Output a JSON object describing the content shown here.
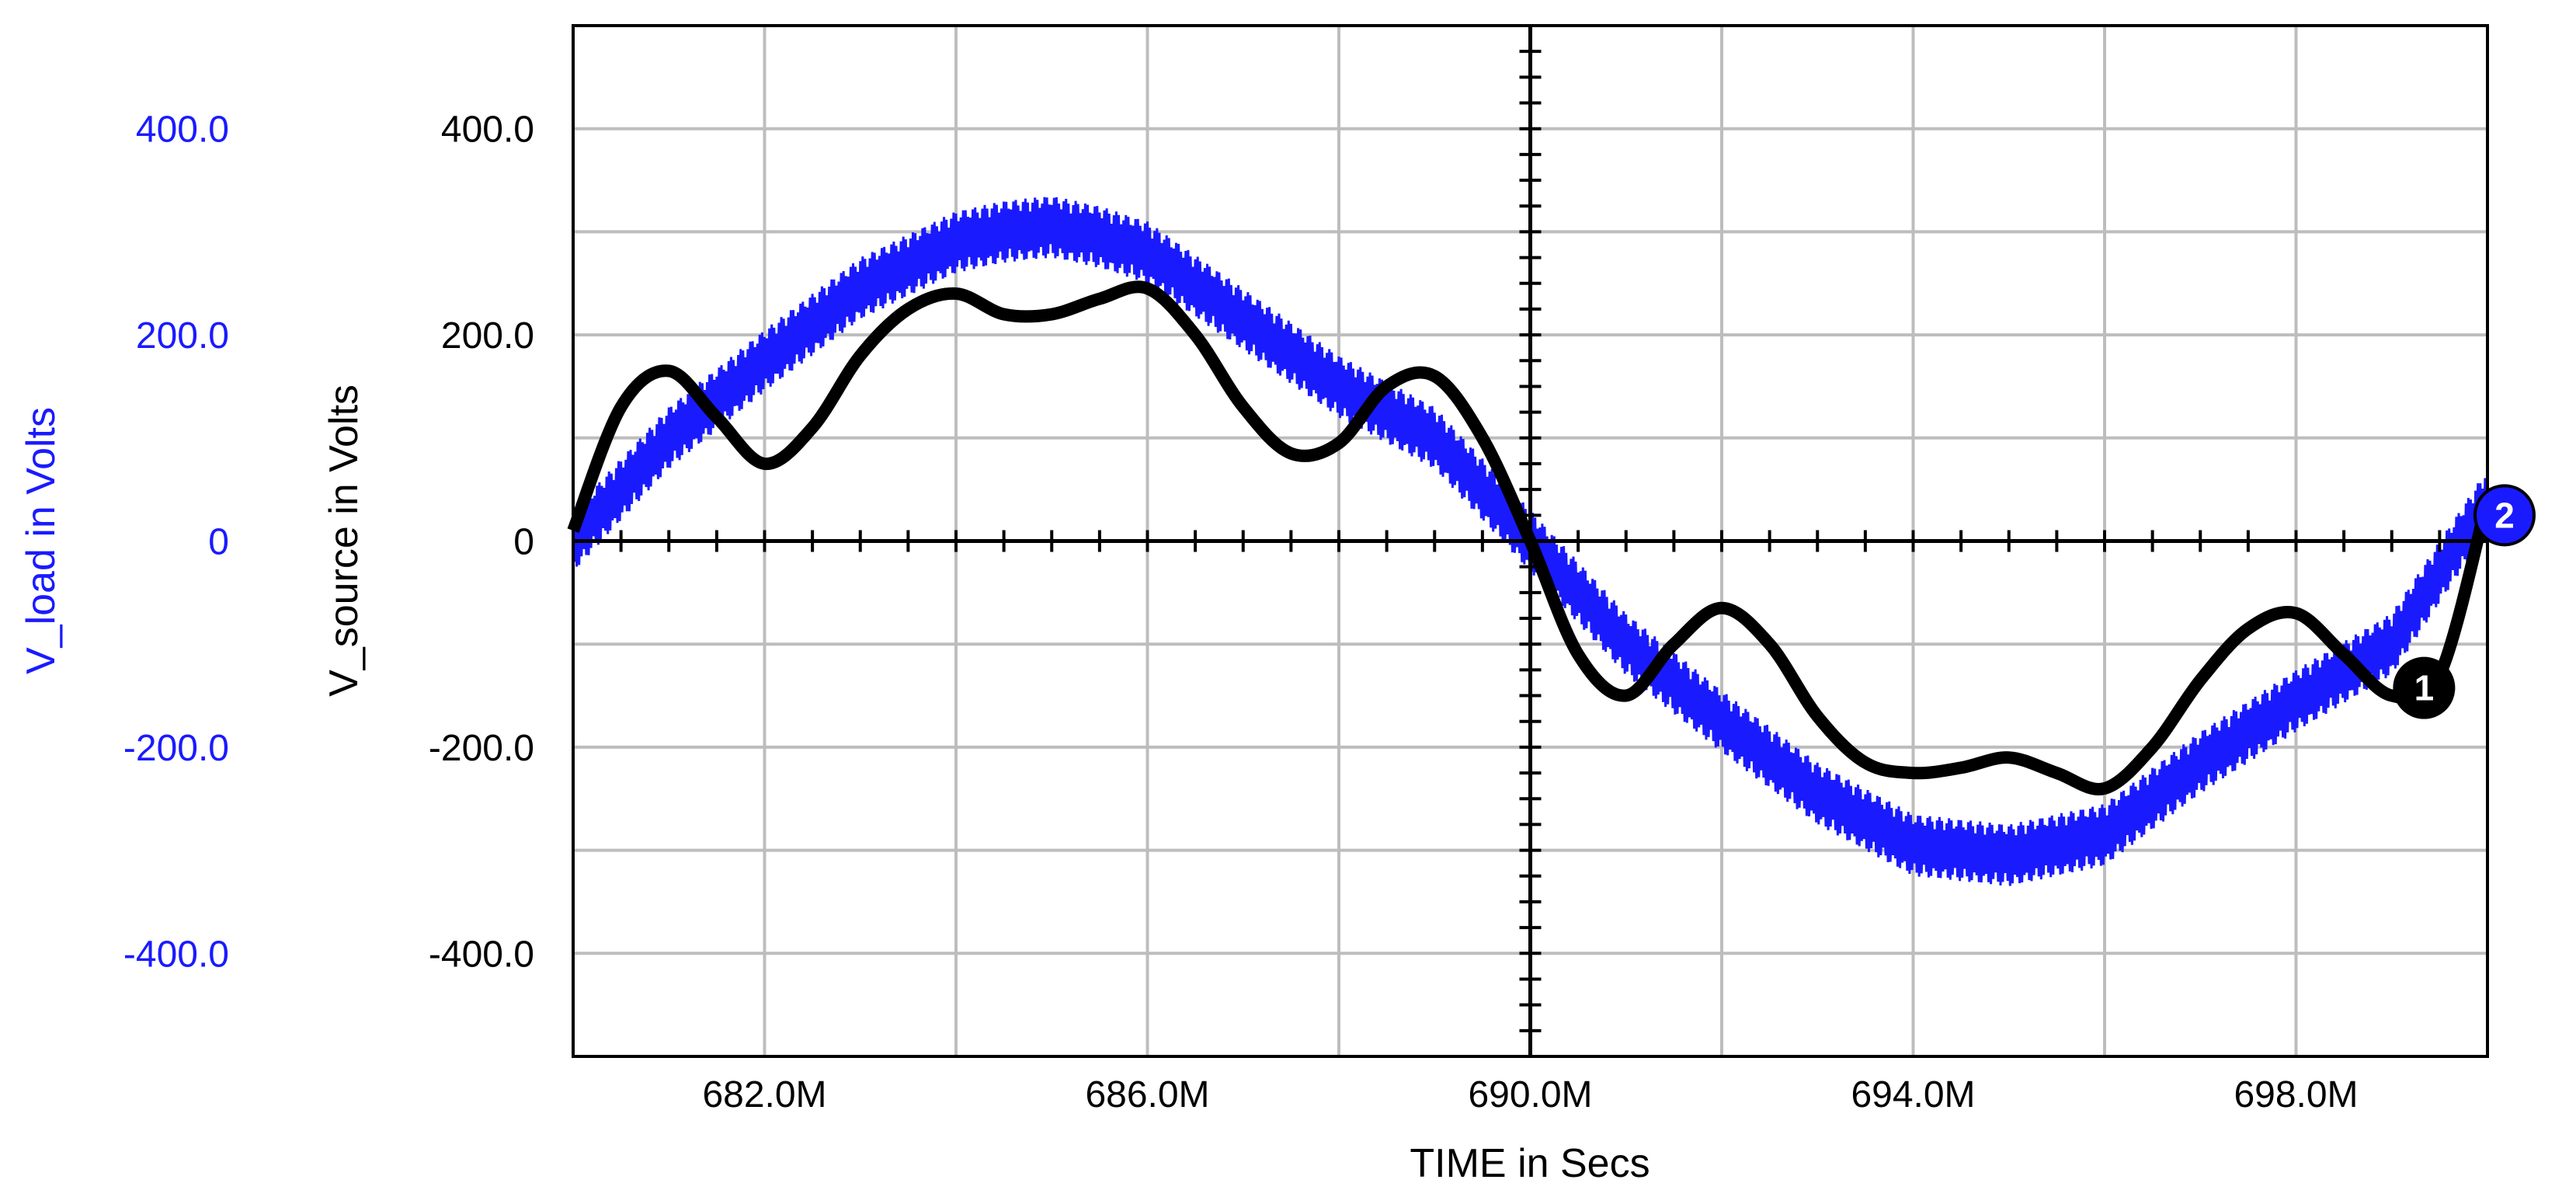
{
  "chart_data": {
    "type": "line",
    "title": "",
    "xlabel": "TIME in Secs",
    "x_unit": "s",
    "xlim": [
      0.68,
      0.7
    ],
    "x_gridlines": [
      0.68,
      0.682,
      0.684,
      0.686,
      0.688,
      0.69,
      0.692,
      0.694,
      0.696,
      0.698,
      0.7
    ],
    "x_ticks": [
      {
        "value": 0.682,
        "label": "682.0M"
      },
      {
        "value": 0.686,
        "label": "686.0M"
      },
      {
        "value": 0.69,
        "label": "690.0M"
      },
      {
        "value": 0.694,
        "label": "694.0M"
      },
      {
        "value": 0.698,
        "label": "698.0M"
      }
    ],
    "y_axes": [
      {
        "id": "source",
        "label": "V_source in Volts",
        "color": "#000000",
        "ylim": [
          -500,
          500
        ],
        "ticks": [
          {
            "value": 400,
            "label": "400.0"
          },
          {
            "value": 200,
            "label": "200.0"
          },
          {
            "value": 0,
            "label": "0"
          },
          {
            "value": -200,
            "label": "-200.0"
          },
          {
            "value": -400,
            "label": "-400.0"
          }
        ]
      },
      {
        "id": "load",
        "label": "V_load in Volts",
        "color": "#1a1aff",
        "ylim": [
          -500,
          500
        ],
        "ticks": [
          {
            "value": 400,
            "label": "400.0"
          },
          {
            "value": 200,
            "label": "200.0"
          },
          {
            "value": 0,
            "label": "0"
          },
          {
            "value": -200,
            "label": "-200.0"
          },
          {
            "value": -400,
            "label": "-400.0"
          }
        ]
      }
    ],
    "y_gridlines": [
      400,
      300,
      200,
      100,
      0,
      -100,
      -200,
      -300,
      -400
    ],
    "grid": true,
    "series": [
      {
        "marker": "1",
        "axis": "source",
        "color": "#000000",
        "x": [
          0.68,
          0.6805,
          0.681,
          0.6815,
          0.682,
          0.6825,
          0.683,
          0.6835,
          0.684,
          0.6845,
          0.685,
          0.6855,
          0.686,
          0.6865,
          0.687,
          0.6875,
          0.688,
          0.6885,
          0.689,
          0.6895,
          0.69,
          0.6905,
          0.691,
          0.6915,
          0.692,
          0.6925,
          0.693,
          0.6935,
          0.694,
          0.6945,
          0.695,
          0.6955,
          0.696,
          0.6965,
          0.697,
          0.6975,
          0.698,
          0.6985,
          0.699,
          0.6995,
          0.7
        ],
        "y": [
          10,
          130,
          165,
          120,
          75,
          110,
          180,
          225,
          240,
          220,
          220,
          235,
          245,
          200,
          130,
          85,
          95,
          150,
          160,
          100,
          0,
          -110,
          -150,
          -100,
          -65,
          -100,
          -170,
          -215,
          -225,
          -220,
          -210,
          -225,
          -240,
          -200,
          -135,
          -85,
          -70,
          -110,
          -150,
          -130,
          40
        ]
      },
      {
        "marker": "2",
        "axis": "load",
        "color": "#1a1aff",
        "ripple": 30,
        "x": [
          0.68,
          0.681,
          0.682,
          0.683,
          0.684,
          0.6845,
          0.685,
          0.6855,
          0.686,
          0.687,
          0.688,
          0.6885,
          0.689,
          0.69,
          0.691,
          0.692,
          0.693,
          0.694,
          0.695,
          0.696,
          0.697,
          0.698,
          0.699,
          0.7
        ],
        "y": [
          0,
          100,
          175,
          245,
          290,
          300,
          305,
          295,
          280,
          215,
          150,
          125,
          100,
          0,
          -100,
          -175,
          -245,
          -295,
          -305,
          -285,
          -215,
          -155,
          -100,
          40
        ]
      }
    ],
    "annotations": [
      {
        "text": "1",
        "series": "source",
        "x": 0.6995,
        "y": -135
      },
      {
        "text": "2",
        "series": "load",
        "x": 0.7,
        "y": 25
      }
    ]
  }
}
